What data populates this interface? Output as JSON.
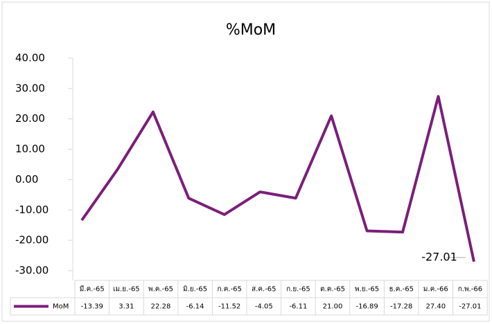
{
  "chart_data": {
    "type": "line",
    "title": "%MoM",
    "categories": [
      "มี.ค.-65",
      "เม.ย.-65",
      "พ.ค.-65",
      "มิ.ย.-65",
      "ก.ค.-65",
      "ส.ค.-65",
      "ก.ย.-65",
      "ต.ค.-65",
      "พ.ย.-65",
      "ธ.ค.-65",
      "ม.ค.-66",
      "ก.พ.-66"
    ],
    "series": [
      {
        "name": "MoM",
        "color": "#7b1e7a",
        "values": [
          -13.39,
          3.31,
          22.28,
          -6.14,
          -11.52,
          -4.05,
          -6.11,
          21.0,
          -16.89,
          -17.28,
          27.4,
          -27.01
        ],
        "value_labels": [
          "-13.39",
          "3.31",
          "22.28",
          "-6.14",
          "-11.52",
          "-4.05",
          "-6.11",
          "21.00",
          "-16.89",
          "-17.28",
          "27.40",
          "-27.01"
        ]
      }
    ],
    "ylim": [
      -30,
      40
    ],
    "yticks": [
      {
        "value": -30,
        "label": "-30.00"
      },
      {
        "value": -20,
        "label": "-20.00"
      },
      {
        "value": -10,
        "label": "-10.00"
      },
      {
        "value": 0,
        "label": "0.00"
      },
      {
        "value": 10,
        "label": "10.00"
      },
      {
        "value": 20,
        "label": "20.00"
      },
      {
        "value": 30,
        "label": "30.00"
      },
      {
        "value": 40,
        "label": "40.00"
      }
    ],
    "grid": false
  }
}
